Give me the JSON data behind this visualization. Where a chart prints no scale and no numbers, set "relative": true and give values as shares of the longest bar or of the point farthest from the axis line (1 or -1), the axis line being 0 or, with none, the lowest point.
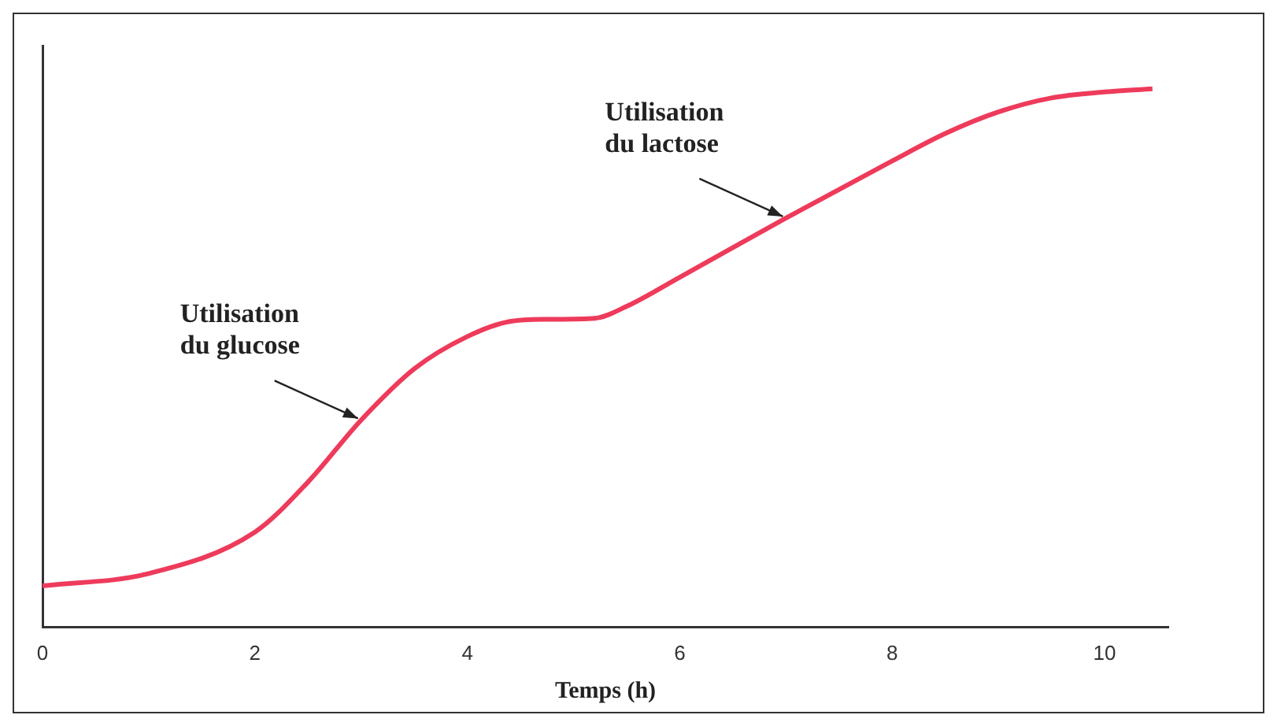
{
  "chart_data": {
    "type": "line",
    "relative": true,
    "xlabel": "Temps (h)",
    "x": [
      0,
      1,
      2,
      2.5,
      3,
      3.5,
      4,
      4.4,
      4.75,
      5.2,
      5.5,
      6,
      7,
      8,
      8.5,
      9,
      9.5,
      10,
      10.45
    ],
    "series": [
      {
        "color": "#ee3b5b",
        "values": [
          0.077,
          0.1,
          0.177,
          0.27,
          0.385,
          0.48,
          0.54,
          0.568,
          0.572,
          0.574,
          0.596,
          0.65,
          0.76,
          0.866,
          0.917,
          0.957,
          0.983,
          0.994,
          1
        ]
      }
    ],
    "xlim": [
      0,
      10.6
    ],
    "xticks": [
      0,
      2,
      4,
      6,
      8,
      10
    ],
    "annotations": [
      {
        "text": "Utilisation\ndu glucose",
        "x": 3,
        "y": 0.385
      },
      {
        "text": "Utilisation\ndu lactose",
        "x": 7,
        "y": 0.76
      }
    ],
    "grid": false,
    "legend": false,
    "marker": "none",
    "line_style": "solid"
  }
}
